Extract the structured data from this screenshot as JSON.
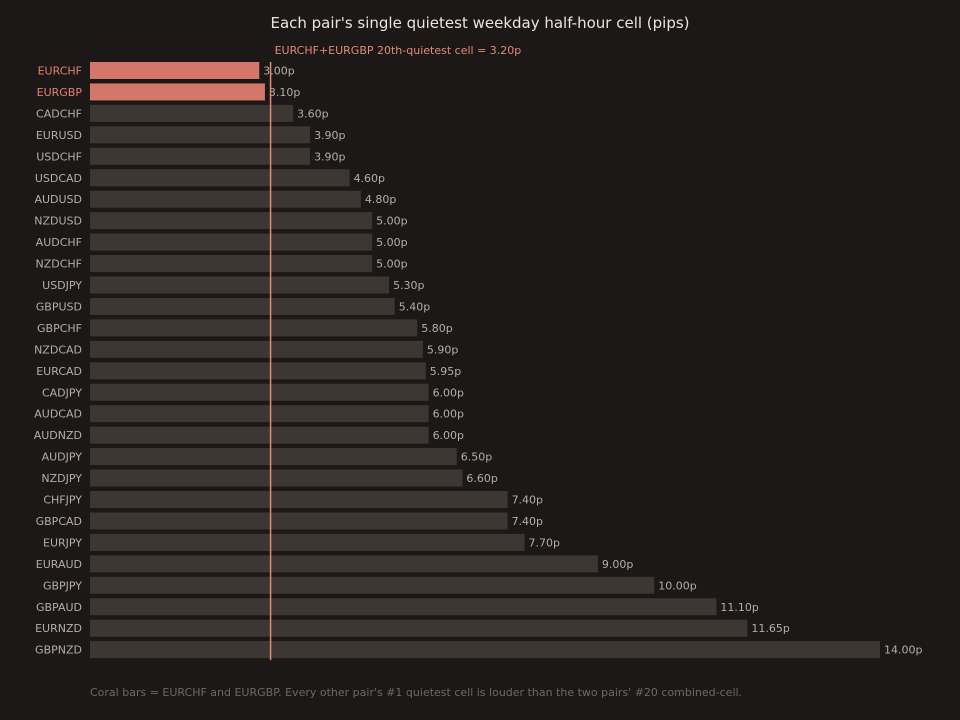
{
  "chart_data": {
    "type": "bar",
    "orientation": "horizontal",
    "title": "Each pair's single quietest weekday half-hour cell (pips)",
    "categories": [
      "EURCHF",
      "EURGBP",
      "CADCHF",
      "EURUSD",
      "USDCHF",
      "USDCAD",
      "AUDUSD",
      "NZDUSD",
      "AUDCHF",
      "NZDCHF",
      "USDJPY",
      "GBPUSD",
      "GBPCHF",
      "NZDCAD",
      "EURCAD",
      "CADJPY",
      "AUDCAD",
      "AUDNZD",
      "AUDJPY",
      "NZDJPY",
      "CHFJPY",
      "GBPCAD",
      "EURJPY",
      "EURAUD",
      "GBPJPY",
      "GBPAUD",
      "EURNZD",
      "GBPNZD"
    ],
    "values": [
      3.0,
      3.1,
      3.6,
      3.9,
      3.9,
      4.6,
      4.8,
      5.0,
      5.0,
      5.0,
      5.3,
      5.4,
      5.8,
      5.9,
      5.95,
      6.0,
      6.0,
      6.0,
      6.5,
      6.6,
      7.4,
      7.4,
      7.7,
      9.0,
      10.0,
      11.1,
      11.65,
      14.0
    ],
    "value_labels": [
      "3.00p",
      "3.10p",
      "3.60p",
      "3.90p",
      "3.90p",
      "4.60p",
      "4.80p",
      "5.00p",
      "5.00p",
      "5.00p",
      "5.30p",
      "5.40p",
      "5.80p",
      "5.90p",
      "5.95p",
      "6.00p",
      "6.00p",
      "6.00p",
      "6.50p",
      "6.60p",
      "7.40p",
      "7.40p",
      "7.70p",
      "9.00p",
      "10.00p",
      "11.10p",
      "11.65p",
      "14.00p"
    ],
    "highlighted": [
      "EURCHF",
      "EURGBP"
    ],
    "reference_line": {
      "value": 3.2,
      "label": "EURCHF+EURGBP 20th-quietest cell = 3.20p"
    },
    "xlim": [
      0,
      14.0
    ],
    "grid": false,
    "legend": "none",
    "footnote": "Coral bars = EURCHF and EURGBP. Every other pair's #1 quietest cell is louder than the two pairs' #20 combined-cell.",
    "colors": {
      "background": "#1c1817",
      "bar": "#3d3733",
      "highlight_bar": "#d4766a",
      "reference_line": "#e08a78",
      "label": "#b5ada6",
      "highlight_label": "#e2806e",
      "title": "#ece4dc",
      "footnote": "#6f6862"
    }
  }
}
